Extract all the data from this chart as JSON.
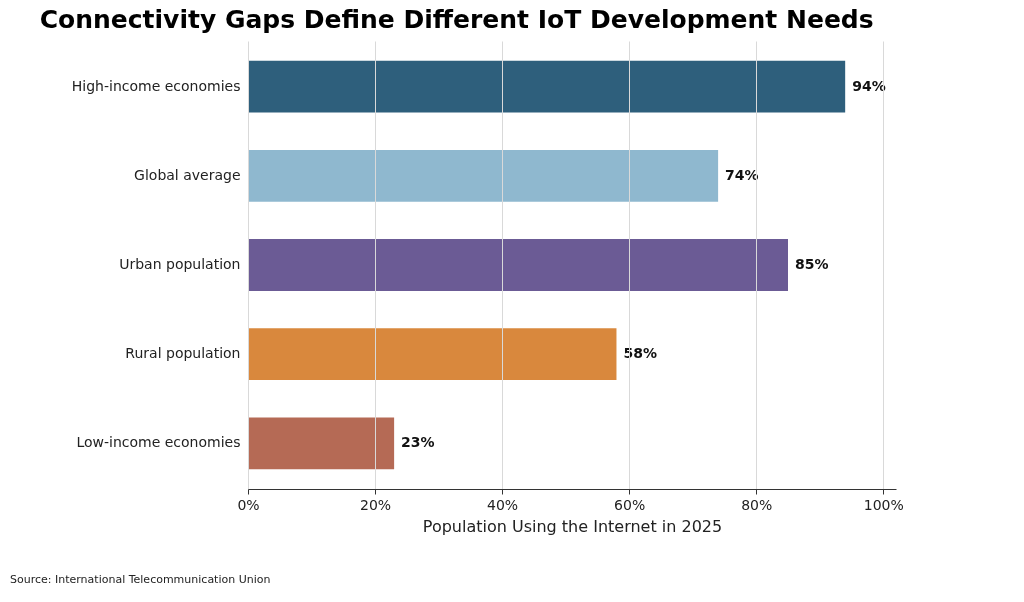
{
  "chart_data": {
    "type": "bar",
    "orientation": "horizontal",
    "title": "Connectivity Gaps Define Different IoT Development Needs",
    "xlabel": "Population Using the Internet in 2025",
    "categories": [
      "High-income economies",
      "Global average",
      "Urban population",
      "Rural population",
      "Low-income economies"
    ],
    "values": [
      94,
      74,
      85,
      58,
      23
    ],
    "colors": [
      "#2e5f7c",
      "#8fb8cf",
      "#6b5b95",
      "#d9883d",
      "#b56a55"
    ],
    "value_labels": [
      "94%",
      "74%",
      "85%",
      "58%",
      "23%"
    ],
    "xlim": [
      0,
      102
    ],
    "xticks": [
      {
        "value": 0,
        "label": "0%"
      },
      {
        "value": 20,
        "label": "20%"
      },
      {
        "value": 40,
        "label": "40%"
      },
      {
        "value": 60,
        "label": "60%"
      },
      {
        "value": 80,
        "label": "80%"
      },
      {
        "value": 100,
        "label": "100%"
      }
    ],
    "grid": "x",
    "annotations": [
      "Source: International Telecommunication Union"
    ]
  }
}
